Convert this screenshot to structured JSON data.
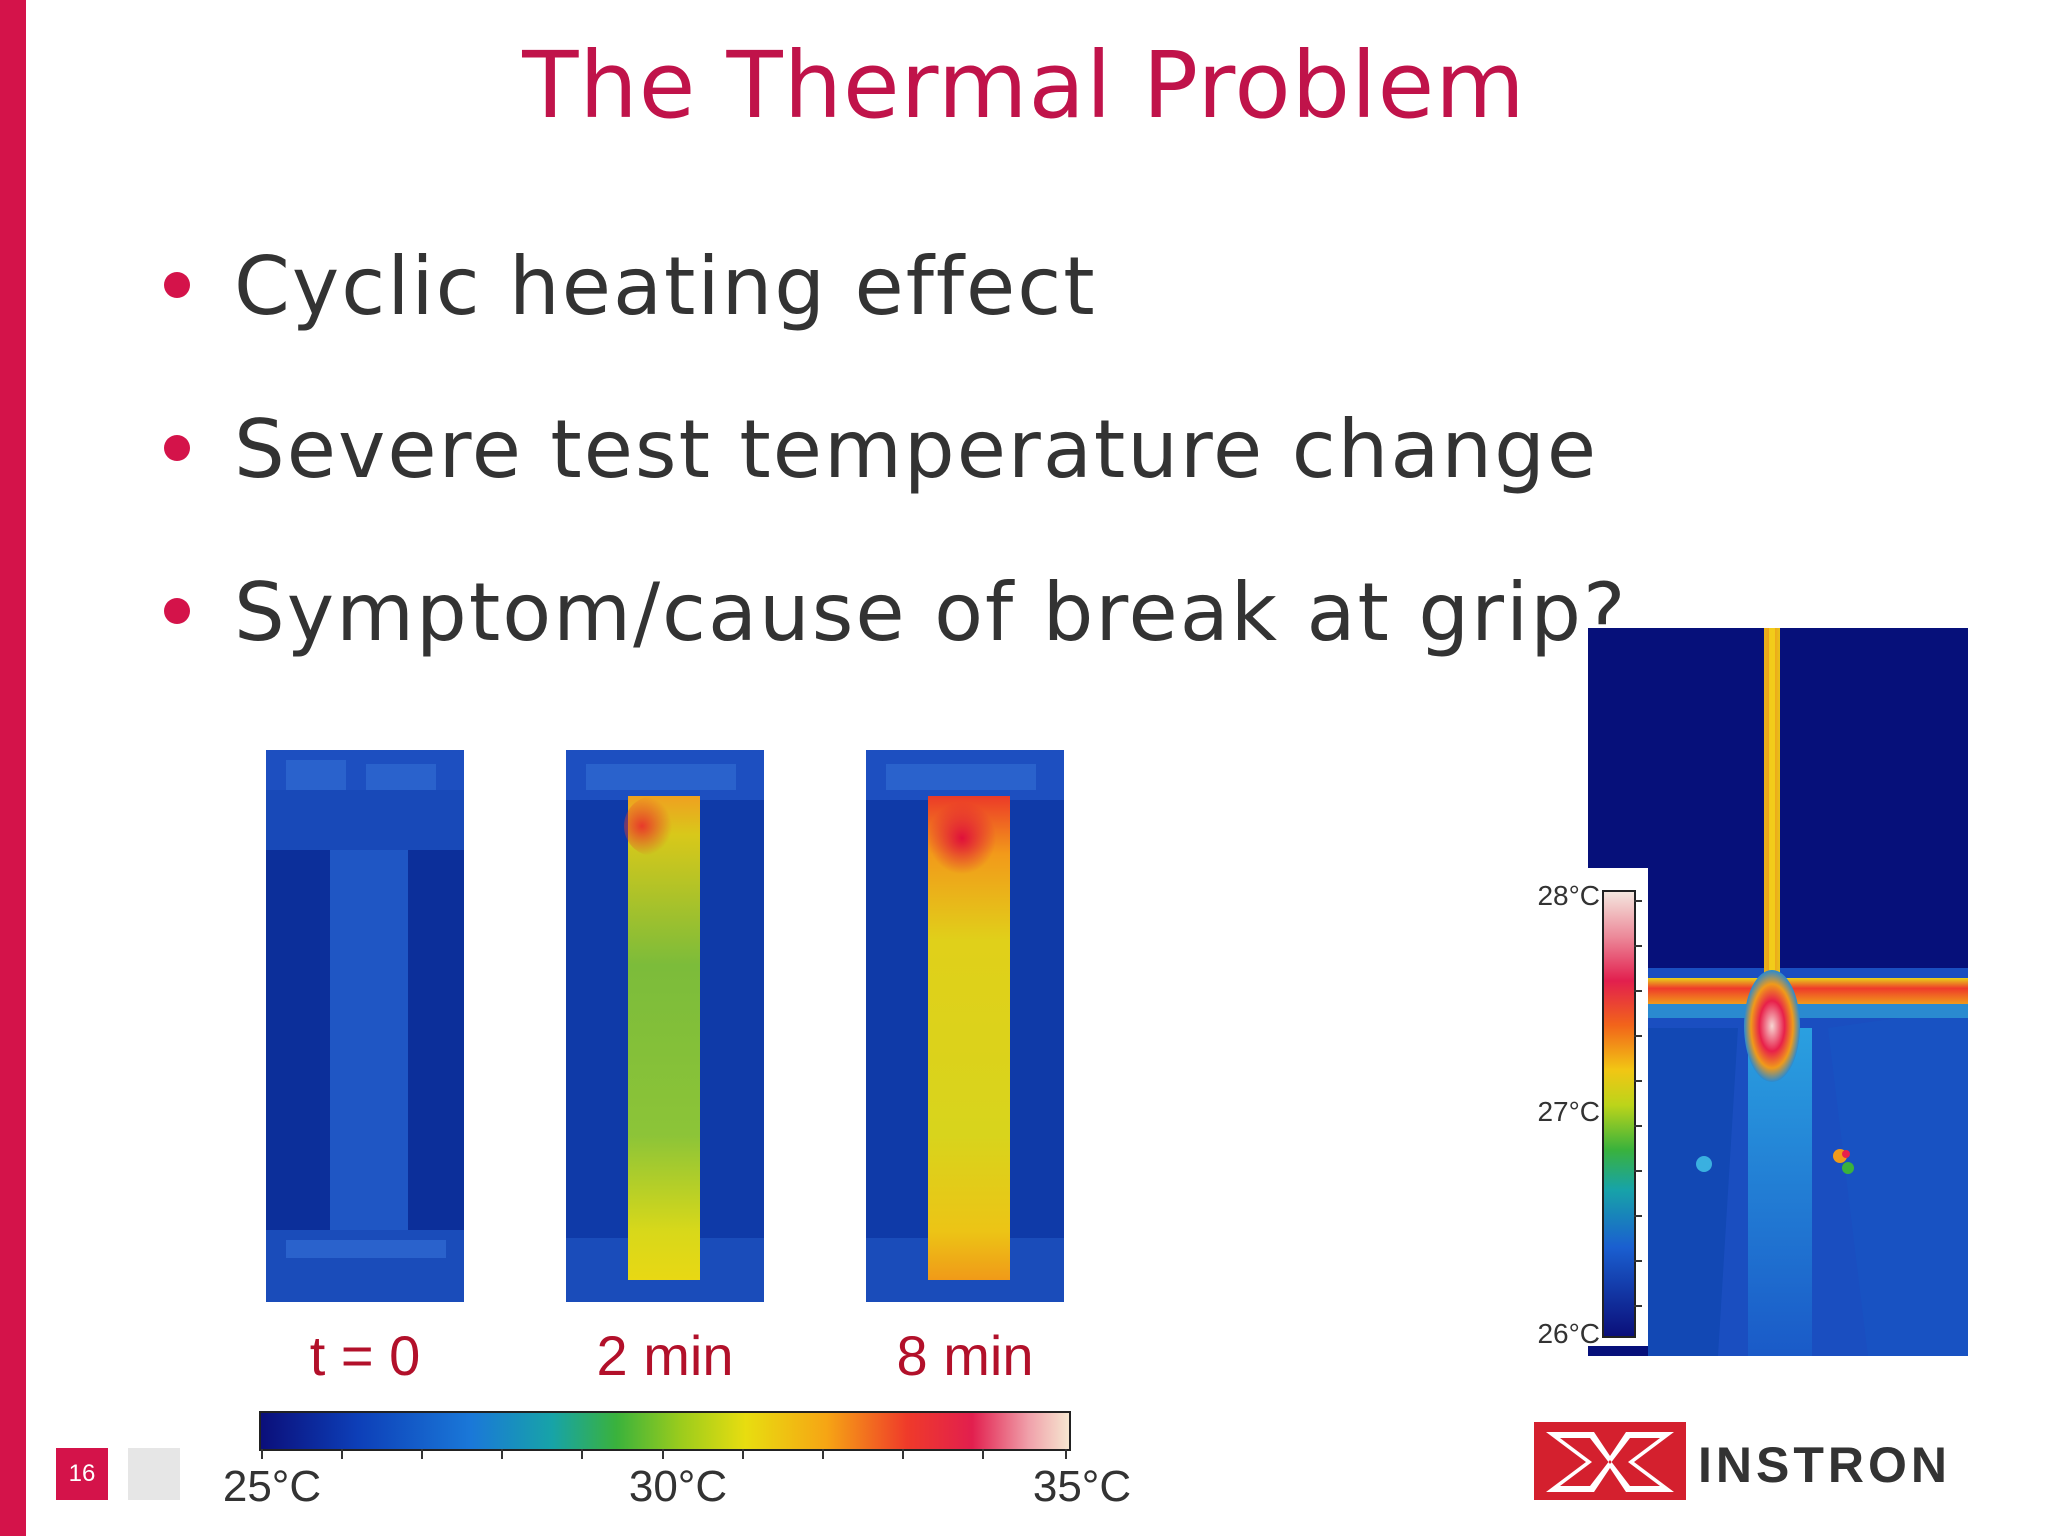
{
  "slide": {
    "title": "The Thermal Problem",
    "page_number": "16",
    "accent_color": "#d4134a"
  },
  "bullets": [
    {
      "text": "Cyclic heating effect"
    },
    {
      "text": "Severe test temperature change"
    },
    {
      "text": "Symptom/cause of break at grip?"
    }
  ],
  "thermal_images": {
    "time_labels": [
      "t = 0",
      "2 min",
      "8 min"
    ],
    "scale": {
      "min_label": "25°C",
      "mid_label": "30°C",
      "max_label": "35°C"
    }
  },
  "grip_image": {
    "scale": {
      "max_label": "28°C",
      "mid_label": "27°C",
      "min_label": "26°C"
    }
  },
  "logo": {
    "text": "INSTRON",
    "icon": "instron-logo-icon"
  }
}
